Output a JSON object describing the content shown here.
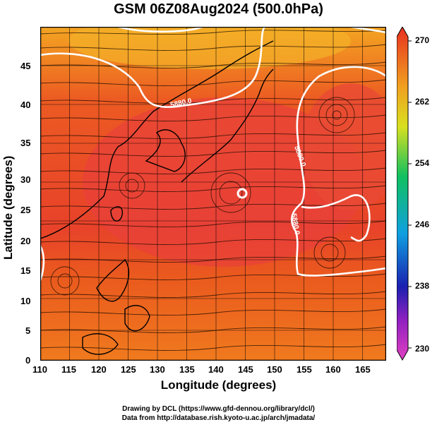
{
  "title": "GSM 06Z08Aug2024 (500.0hPa)",
  "xlabel": "Longitude (degrees)",
  "ylabel": "Latitude  (degrees)",
  "x_ticks": [
    "110",
    "115",
    "120",
    "125",
    "130",
    "135",
    "140",
    "145",
    "150",
    "155",
    "160",
    "165"
  ],
  "y_ticks": [
    "0",
    "5",
    "10",
    "15",
    "20",
    "25",
    "30",
    "35",
    "40",
    "45"
  ],
  "contour_labels": [
    "5880.0",
    "5880.0",
    "5880.0"
  ],
  "colorbar": {
    "ticks": [
      "230",
      "238",
      "246",
      "254",
      "262",
      "270"
    ],
    "colors": [
      "#e040c0",
      "#1020a0",
      "#10a0e0",
      "#10c060",
      "#e0e020",
      "#f08020",
      "#e83020"
    ]
  },
  "credits": {
    "line1": "Drawing by DCL (https://www.gfd-dennou.org/library/dcl/)",
    "line2": "Data from http://database.rish.kyoto-u.ac.jp/arch/jmadata/"
  },
  "colors": {
    "hot": "#e83a1c",
    "warm": "#f06a20",
    "orange": "#f5a623",
    "coast": "#000000",
    "contour": "#ffffff"
  }
}
